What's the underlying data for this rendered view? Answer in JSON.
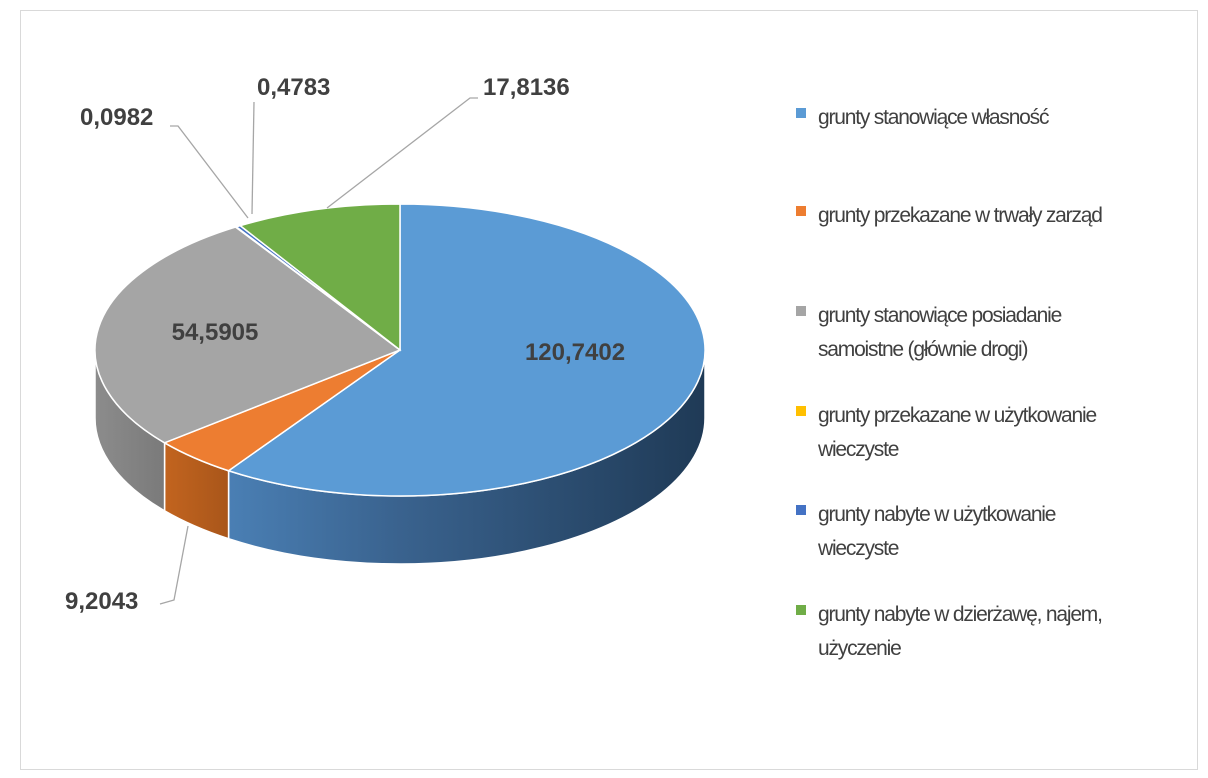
{
  "chart_data": {
    "type": "pie",
    "title": "",
    "labels": [
      "grunty stanowiące własność",
      "grunty przekazane w trwały zarząd",
      "grunty stanowiące posiadanie samoistne (głównie drogi)",
      "grunty przekazane w użytkowanie wieczyste",
      "grunty nabyte w użytkowanie wieczyste",
      "grunty nabyte w dzierżawę, najem, użyczenie"
    ],
    "values": [
      120.7402,
      9.2043,
      54.5905,
      0.0982,
      0.4783,
      17.8136
    ],
    "value_labels": [
      "120,7402",
      "9,2043",
      "54,5905",
      "0,0982",
      "0,4783",
      "17,8136"
    ],
    "colors": [
      "#5B9BD5",
      "#ED7D31",
      "#A5A5A5",
      "#FFC000",
      "#4472C4",
      "#70AD47"
    ],
    "legend_position": "right",
    "style": "3d"
  },
  "legend": {
    "items": [
      {
        "line1": "grunty stanowiące własność",
        "line2": "",
        "color": "#5B9BD5"
      },
      {
        "line1": "grunty przekazane w trwały zarząd",
        "line2": "",
        "color": "#ED7D31"
      },
      {
        "line1": "grunty stanowiące posiadanie",
        "line2": "samoistne (głównie drogi)",
        "color": "#A5A5A5"
      },
      {
        "line1": "grunty przekazane w użytkowanie",
        "line2": "wieczyste",
        "color": "#FFC000"
      },
      {
        "line1": "grunty nabyte w użytkowanie",
        "line2": "wieczyste",
        "color": "#4472C4"
      },
      {
        "line1": "grunty nabyte w dzierżawę, najem,",
        "line2": "użyczenie",
        "color": "#70AD47"
      }
    ]
  }
}
